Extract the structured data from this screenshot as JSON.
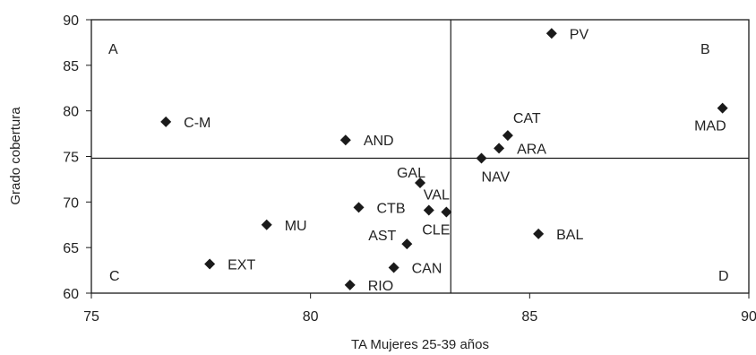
{
  "chart_data": {
    "type": "scatter",
    "xlabel": "TA Mujeres 25-39 años",
    "ylabel": "Grado cobertura",
    "xlim": [
      75,
      90
    ],
    "ylim": [
      60,
      90
    ],
    "x_ticks": [
      75,
      80,
      85,
      90
    ],
    "y_ticks": [
      60,
      65,
      70,
      75,
      80,
      85,
      90
    ],
    "grid": false,
    "reference_lines": {
      "x": 83.2,
      "y": 74.8
    },
    "quadrant_labels": [
      {
        "text": "A",
        "position": "top-left"
      },
      {
        "text": "B",
        "position": "top-right"
      },
      {
        "text": "C",
        "position": "bottom-left"
      },
      {
        "text": "D",
        "position": "bottom-right"
      }
    ],
    "marker": "diamond",
    "marker_color": "#1a1a1a",
    "points": [
      {
        "label": "PV",
        "x": 85.5,
        "y": 88.5,
        "label_side": "right"
      },
      {
        "label": "MAD",
        "x": 89.4,
        "y": 80.3,
        "label_side": "below-left"
      },
      {
        "label": "C-M",
        "x": 76.7,
        "y": 78.8,
        "label_side": "right"
      },
      {
        "label": "AND",
        "x": 80.8,
        "y": 76.8,
        "label_side": "right"
      },
      {
        "label": "CAT",
        "x": 84.5,
        "y": 77.3,
        "label_side": "above-right"
      },
      {
        "label": "ARA",
        "x": 84.3,
        "y": 75.9,
        "label_side": "right"
      },
      {
        "label": "NAV",
        "x": 83.9,
        "y": 74.8,
        "label_side": "below"
      },
      {
        "label": "GAL",
        "x": 82.5,
        "y": 72.1,
        "label_side": "above-left"
      },
      {
        "label": "VAL",
        "x": 82.7,
        "y": 69.1,
        "label_side": "above"
      },
      {
        "label": "CLE",
        "x": 83.1,
        "y": 68.9,
        "label_side": "below-left"
      },
      {
        "label": "CTB",
        "x": 81.1,
        "y": 69.4,
        "label_side": "right"
      },
      {
        "label": "MU",
        "x": 79.0,
        "y": 67.5,
        "label_side": "right"
      },
      {
        "label": "AST",
        "x": 82.2,
        "y": 65.4,
        "label_side": "left"
      },
      {
        "label": "BAL",
        "x": 85.2,
        "y": 66.5,
        "label_side": "right"
      },
      {
        "label": "EXT",
        "x": 77.7,
        "y": 63.2,
        "label_side": "right"
      },
      {
        "label": "CAN",
        "x": 81.9,
        "y": 62.8,
        "label_side": "right"
      },
      {
        "label": "RIO",
        "x": 80.9,
        "y": 60.9,
        "label_side": "right"
      }
    ]
  }
}
